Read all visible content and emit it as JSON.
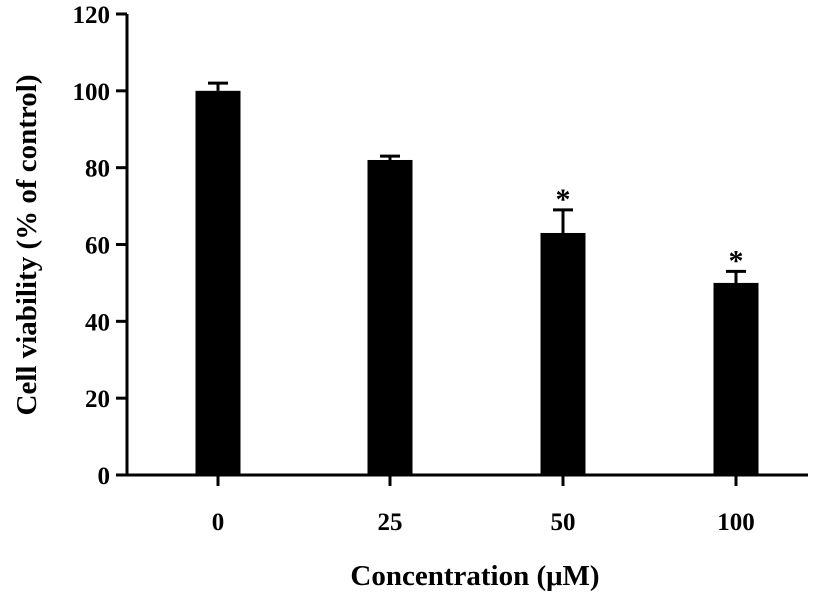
{
  "chart_data": {
    "type": "bar",
    "categories": [
      "0",
      "25",
      "50",
      "100"
    ],
    "values": [
      100,
      82,
      63,
      50
    ],
    "errors": [
      2,
      1,
      6,
      3
    ],
    "significance": [
      "",
      "",
      "*",
      "*"
    ],
    "xlabel": "Concentration (μM)",
    "ylabel": "Cell viability (% of control)",
    "ylim": [
      0,
      120
    ],
    "yticks": [
      0,
      20,
      40,
      60,
      80,
      100,
      120
    ],
    "bar_color": "#000000",
    "grid": false,
    "legend": "none"
  }
}
